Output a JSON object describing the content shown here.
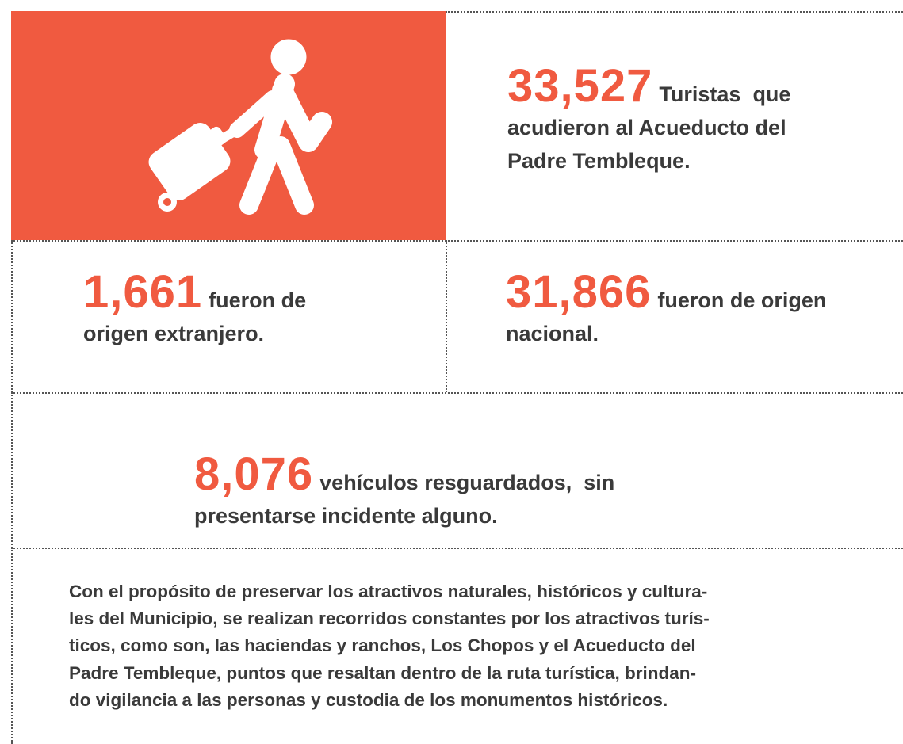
{
  "stats": [
    {
      "value": "33,527",
      "lines": [
        "Turistas  que",
        "acudieron al Acueducto del",
        "Padre Tembleque."
      ]
    },
    {
      "value": "1,661",
      "lines": [
        "fueron de",
        "origen extranjero."
      ]
    },
    {
      "value": "31,866",
      "lines": [
        "fueron de origen",
        "nacional."
      ]
    },
    {
      "value": "8,076",
      "lines": [
        "vehículos resguardados,  sin",
        "presentarse incidente alguno."
      ]
    }
  ],
  "paragraph": [
    "Con el propósito de preservar los atractivos naturales, históricos y cultura-",
    "les del Municipio, se realizan recorridos constantes por los atractivos turís-",
    "ticos, como son, las haciendas y ranchos, Los Chopos y el Acueducto del",
    "Padre Tembleque, puntos que resaltan dentro de la ruta turística, brindan-",
    "do vigilancia a las personas y custodia de los monumentos históricos."
  ]
}
